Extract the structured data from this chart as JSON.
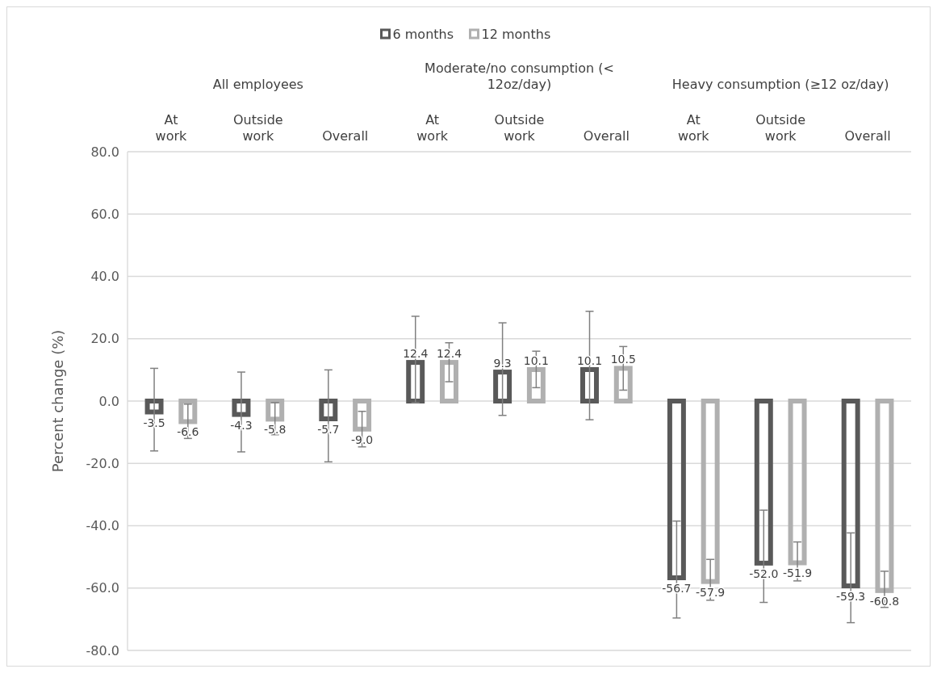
{
  "chart_data": {
    "type": "bar",
    "ylabel": "Percent change (%)",
    "categories": [
      "At work",
      "Outside work",
      "Overall",
      "At work",
      "Outside work",
      "Overall",
      "At work",
      "Outside work",
      "Overall"
    ],
    "annotations": [
      "All employees",
      "Moderate/no consumption (< 12oz/day)",
      "Heavy consumption (≥12 oz/day)"
    ],
    "series": [
      {
        "name": "6 months",
        "color": "#595959",
        "values": [
          -3.5,
          -4.3,
          -5.7,
          12.4,
          9.3,
          10.1,
          -56.7,
          -52.0,
          -59.3
        ],
        "value_labels": [
          "-3.5",
          "-4.3",
          "-5.7",
          "12.4",
          "9.3",
          "10.1",
          "-56.7",
          "-52.0",
          "-59.3"
        ],
        "errors": [
          [
            -16,
            10.5
          ],
          [
            -16.3,
            9.3
          ],
          [
            -19.5,
            10
          ],
          [
            -0.5,
            27.2
          ],
          [
            -4.6,
            25.1
          ],
          [
            -6,
            28.8
          ],
          [
            -69.6,
            -38.5
          ],
          [
            -64.6,
            -35
          ],
          [
            -71.1,
            -42.3
          ]
        ]
      },
      {
        "name": "12 months",
        "color": "#b0b0b0",
        "values": [
          -6.6,
          -5.8,
          -9.0,
          12.4,
          10.1,
          10.5,
          -57.9,
          -51.9,
          -60.8
        ],
        "value_labels": [
          "-6.6",
          "-5.8",
          "-9.0",
          "12.4",
          "10.1",
          "10.5",
          "-57.9",
          "-51.9",
          "-60.8"
        ],
        "errors": [
          [
            -12,
            -1
          ],
          [
            -10.8,
            -0.5
          ],
          [
            -14.7,
            -3.3
          ],
          [
            6.2,
            18.7
          ],
          [
            4.3,
            16
          ],
          [
            3.5,
            17.5
          ],
          [
            -63.9,
            -50.8
          ],
          [
            -57.7,
            -45.2
          ],
          [
            -66.2,
            -54.6
          ]
        ]
      }
    ],
    "ylim": [
      -80,
      80
    ],
    "yticks": [
      {
        "value": -80,
        "label": "-80.0"
      },
      {
        "value": -60,
        "label": "-60.0"
      },
      {
        "value": -40,
        "label": "-40.0"
      },
      {
        "value": -20,
        "label": "-20.0"
      },
      {
        "value": 0,
        "label": "0.0"
      },
      {
        "value": 20,
        "label": "20.0"
      },
      {
        "value": 40,
        "label": "40.0"
      },
      {
        "value": 60,
        "label": "60.0"
      },
      {
        "value": 80,
        "label": "80.0"
      }
    ],
    "grid": "y",
    "legend": "top"
  }
}
